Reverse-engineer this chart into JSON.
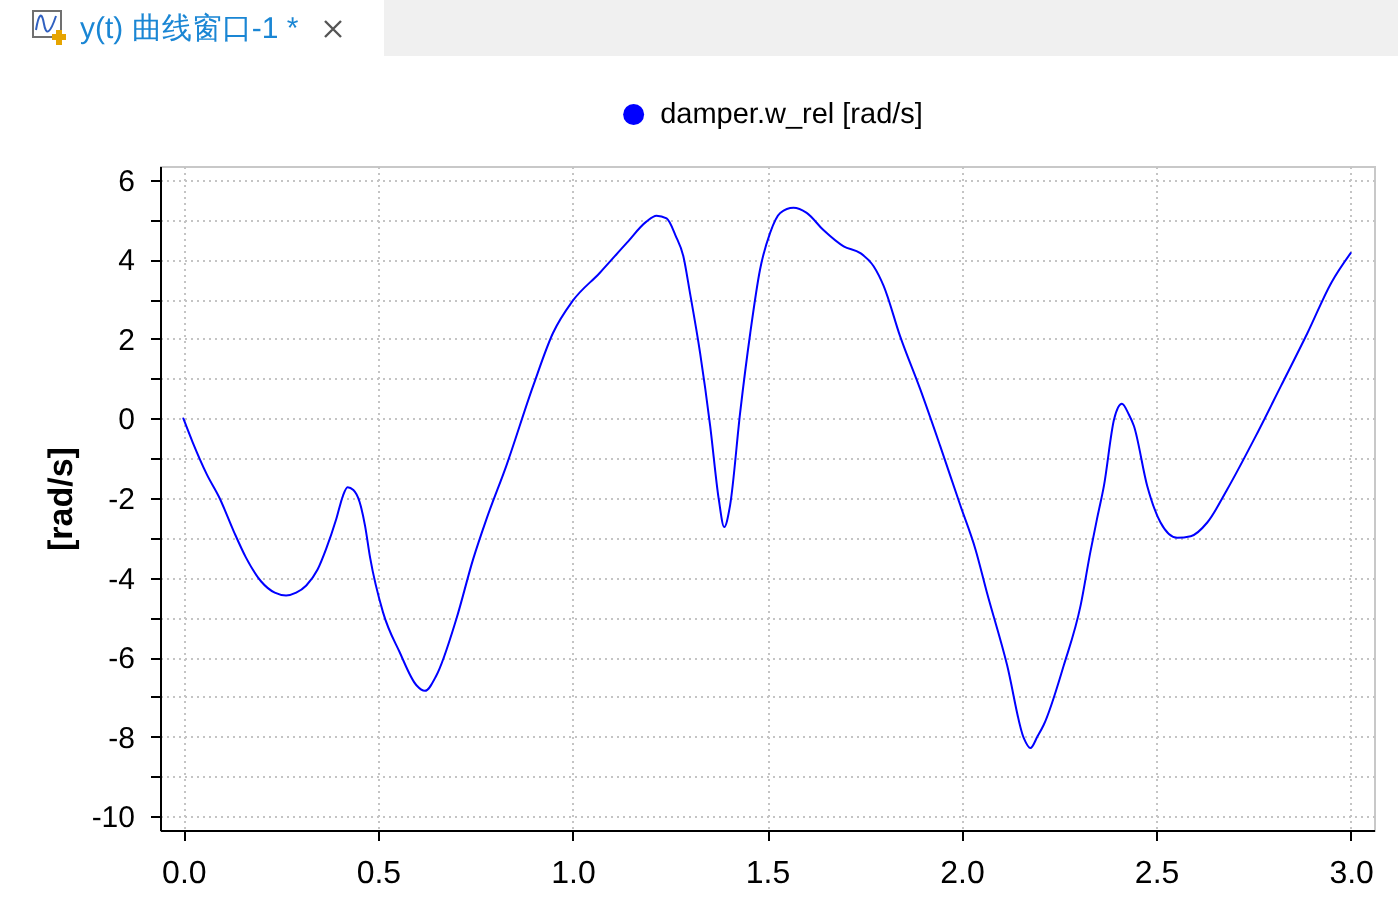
{
  "chart_data": {
    "type": "line",
    "title": "y(t) 曲线窗口-1 *",
    "ylabel": "[rad/s]",
    "x": [
      0,
      0.024,
      0.06,
      0.093,
      0.13,
      0.161,
      0.2,
      0.235,
      0.264,
      0.29,
      0.316,
      0.345,
      0.367,
      0.393,
      0.41,
      0.422,
      0.437,
      0.453,
      0.467,
      0.48,
      0.513,
      0.556,
      0.599,
      0.621,
      0.65,
      0.702,
      0.745,
      0.779,
      0.83,
      0.899,
      0.95,
      1.0,
      1.07,
      1.139,
      1.19,
      1.216,
      1.242,
      1.265,
      1.285,
      1.302,
      1.328,
      1.354,
      1.376,
      1.39,
      1.405,
      1.431,
      1.457,
      1.482,
      1.508,
      1.534,
      1.568,
      1.602,
      1.645,
      1.697,
      1.74,
      1.774,
      1.8,
      1.842,
      1.894,
      1.945,
      1.997,
      2.036,
      2.065,
      2.117,
      2.16,
      2.177,
      2.195,
      2.211,
      2.263,
      2.306,
      2.331,
      2.348,
      2.366,
      2.392,
      2.412,
      2.43,
      2.443,
      2.477,
      2.511,
      2.554,
      2.589,
      2.632,
      2.683,
      2.752,
      2.821,
      2.889,
      2.95,
      3.0
    ],
    "series": [
      {
        "name": "damper.w_rel [rad/s]",
        "color": "#0000ff",
        "values": [
          0,
          -0.6,
          -1.4,
          -2.0,
          -2.85,
          -3.5,
          -4.1,
          -4.38,
          -4.45,
          -4.38,
          -4.2,
          -3.8,
          -3.28,
          -2.53,
          -1.95,
          -1.73,
          -1.8,
          -2.1,
          -2.7,
          -3.5,
          -4.87,
          -5.88,
          -6.71,
          -6.85,
          -6.47,
          -5.03,
          -3.53,
          -2.53,
          -1.19,
          0.82,
          2.15,
          2.95,
          3.66,
          4.41,
          4.95,
          5.1,
          5.03,
          4.6,
          4.08,
          3.16,
          1.65,
          -0.19,
          -2.03,
          -2.73,
          -2.19,
          0.15,
          2.15,
          3.74,
          4.67,
          5.17,
          5.3,
          5.17,
          4.74,
          4.33,
          4.16,
          3.83,
          3.33,
          2.07,
          0.73,
          -0.69,
          -2.19,
          -3.3,
          -4.37,
          -6.2,
          -8.04,
          -8.29,
          -8.0,
          -7.71,
          -6.2,
          -4.7,
          -3.36,
          -2.53,
          -1.69,
          -0.02,
          0.37,
          0.1,
          -0.19,
          -1.69,
          -2.61,
          -3.0,
          -2.96,
          -2.61,
          -1.78,
          -0.52,
          0.82,
          2.15,
          3.41,
          4.16
        ]
      }
    ],
    "xlim": [
      -0.06,
      3.06
    ],
    "ylim": [
      -10.35,
      6.35
    ],
    "xticks": [
      {
        "value": 0,
        "label": "0.0"
      },
      0.5,
      {
        "value": 1,
        "label": "1.0"
      },
      1.5,
      {
        "value": 2,
        "label": "2.0"
      },
      2.5,
      {
        "value": 3,
        "label": "3.0"
      }
    ],
    "yticks": [
      -10,
      {
        "value": -9,
        "label": null
      },
      -8,
      {
        "value": -7,
        "label": null
      },
      -6,
      {
        "value": -5,
        "label": null
      },
      -4,
      {
        "value": -3,
        "label": null
      },
      -2,
      {
        "value": -1,
        "label": null
      },
      0,
      {
        "value": 1,
        "label": null
      },
      2,
      {
        "value": 3,
        "label": null
      },
      4,
      {
        "value": 5,
        "label": null
      },
      6
    ],
    "grid": true,
    "legend": "top"
  }
}
